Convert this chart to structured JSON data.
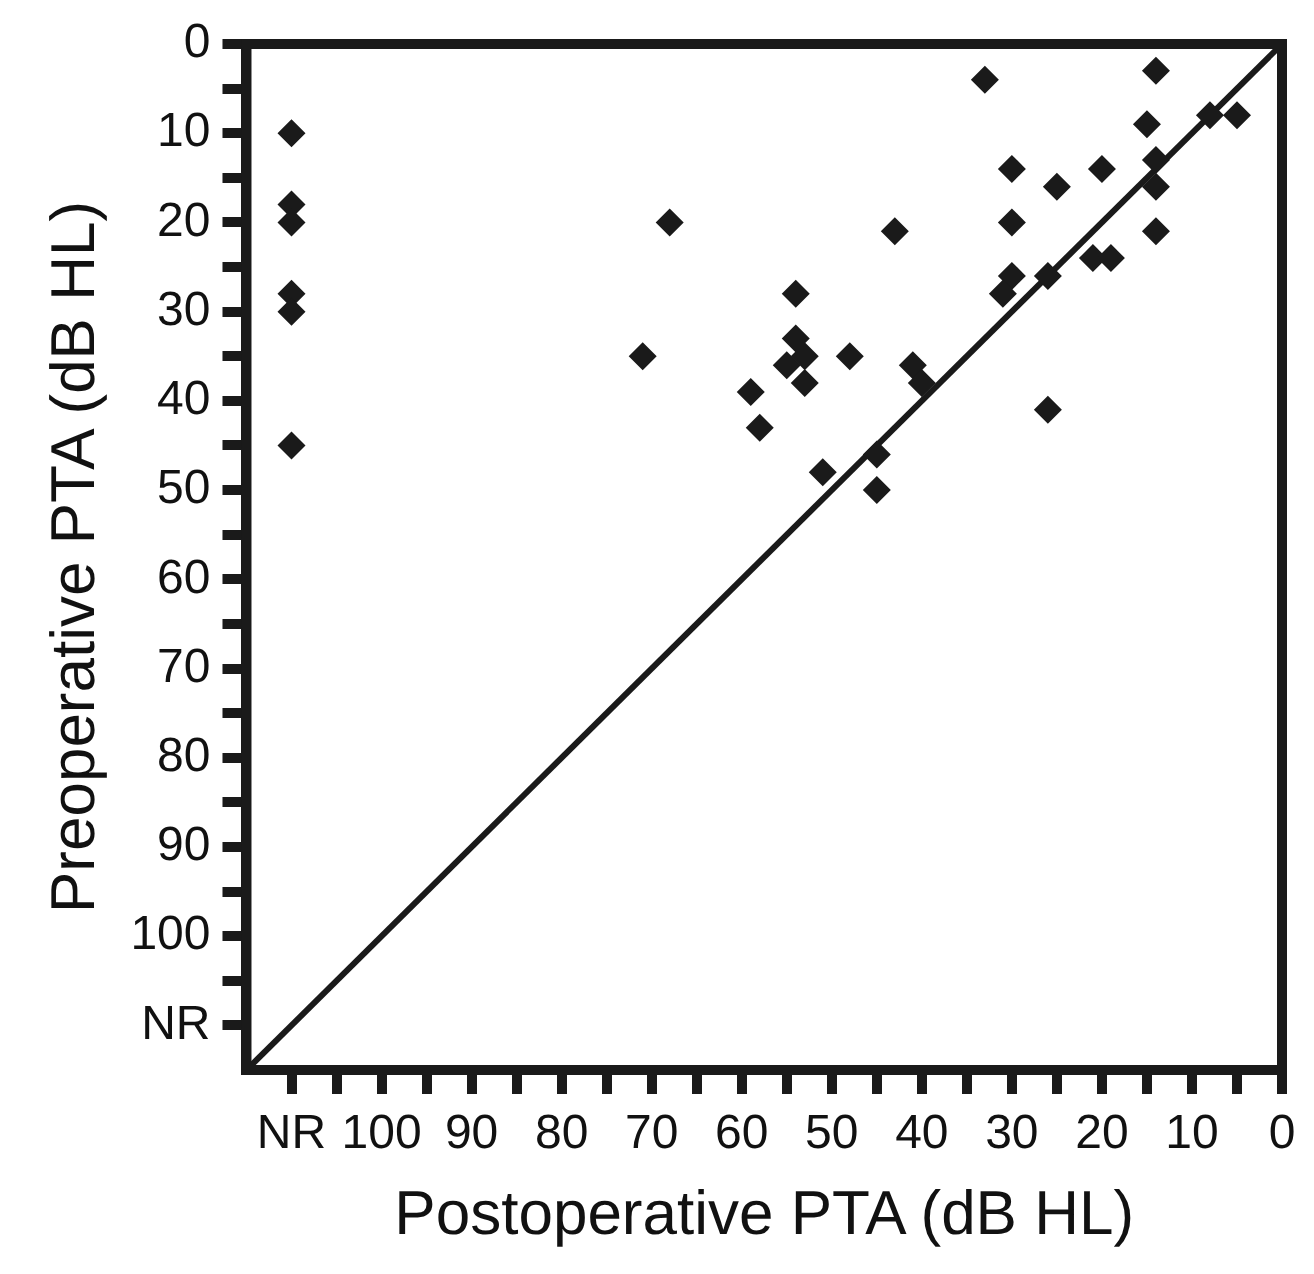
{
  "chart_data": {
    "type": "scatter",
    "xlabel": "Postoperative PTA (dB HL)",
    "ylabel": "Preoperative PTA (dB HL)",
    "xlim": [
      115,
      0
    ],
    "ylim": [
      115,
      0
    ],
    "xticks": [
      {
        "value": 110,
        "label": "NR"
      },
      {
        "value": 105,
        "label": null
      },
      100,
      {
        "value": 95,
        "label": null
      },
      90,
      {
        "value": 85,
        "label": null
      },
      80,
      {
        "value": 75,
        "label": null
      },
      70,
      {
        "value": 65,
        "label": null
      },
      60,
      {
        "value": 55,
        "label": null
      },
      50,
      {
        "value": 45,
        "label": null
      },
      40,
      {
        "value": 35,
        "label": null
      },
      30,
      {
        "value": 25,
        "label": null
      },
      20,
      {
        "value": 15,
        "label": null
      },
      10,
      {
        "value": 5,
        "label": null
      },
      0
    ],
    "yticks": [
      0,
      {
        "value": 5,
        "label": null
      },
      10,
      {
        "value": 15,
        "label": null
      },
      20,
      {
        "value": 25,
        "label": null
      },
      30,
      {
        "value": 35,
        "label": null
      },
      40,
      {
        "value": 45,
        "label": null
      },
      50,
      {
        "value": 55,
        "label": null
      },
      60,
      {
        "value": 65,
        "label": null
      },
      70,
      {
        "value": 75,
        "label": null
      },
      80,
      {
        "value": 85,
        "label": null
      },
      90,
      {
        "value": 95,
        "label": null
      },
      100,
      {
        "value": 105,
        "label": null
      },
      {
        "value": 110,
        "label": "NR"
      }
    ],
    "grid": false,
    "legend": false,
    "marker": "diamond",
    "series": [
      {
        "color": "#1a1a1a",
        "x": [
          110,
          110,
          110,
          110,
          110,
          110,
          68,
          71,
          59,
          58,
          33,
          14,
          15,
          8,
          5,
          14,
          14,
          30,
          25,
          20,
          30,
          43,
          14,
          21,
          19,
          30,
          31,
          26,
          54,
          54,
          55,
          53,
          53,
          48,
          41,
          40,
          26,
          51,
          45,
          45
        ],
        "values": [
          10,
          18,
          20,
          28,
          30,
          45,
          20,
          35,
          39,
          43,
          4,
          3,
          9,
          8,
          8,
          13,
          16,
          14,
          16,
          14,
          20,
          21,
          21,
          24,
          24,
          26,
          28,
          26,
          28,
          33,
          36,
          35,
          38,
          35,
          36,
          38,
          41,
          48,
          46,
          50
        ]
      },
      {
        "type": "line",
        "color": "#1a1a1a",
        "line_style": "solid",
        "marker": "none",
        "x": [
          115,
          0
        ],
        "values": [
          115,
          0
        ]
      }
    ]
  }
}
